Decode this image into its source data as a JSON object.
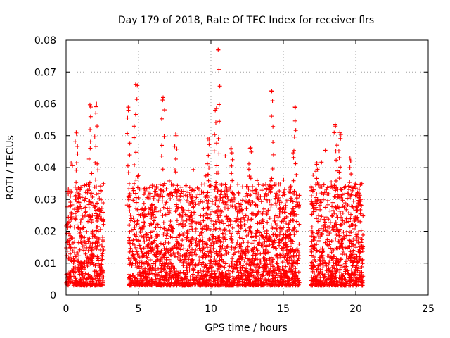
{
  "chart_data": {
    "type": "scatter",
    "title": "Day 179 of 2018, Rate Of TEC Index for receiver flrs",
    "xlabel": "GPS time / hours",
    "ylabel": "ROTI / TECUs",
    "xlim": [
      0,
      25
    ],
    "ylim": [
      0,
      0.08
    ],
    "xticks": [
      0,
      5,
      10,
      15,
      20,
      25
    ],
    "xtick_labels": [
      "0",
      "5",
      "10",
      "15",
      "20",
      "25"
    ],
    "yticks": [
      0,
      0.01,
      0.02,
      0.03,
      0.04,
      0.05,
      0.06,
      0.07,
      0.08
    ],
    "ytick_labels": [
      "0",
      "0.01",
      "0.02",
      "0.03",
      "0.04",
      "0.05",
      "0.06",
      "0.07",
      "0.08"
    ],
    "grid": true,
    "marker": "+",
    "color": "#ff0000",
    "series": [
      {
        "name": "ROTI",
        "coverage_hours": [
          [
            0.0,
            2.6
          ],
          [
            4.3,
            16.1
          ],
          [
            16.9,
            20.5
          ]
        ],
        "typical_range": [
          0.003,
          0.035
        ],
        "peaks": [
          {
            "x": 0.7,
            "y": 0.051
          },
          {
            "x": 1.7,
            "y": 0.059
          },
          {
            "x": 2.1,
            "y": 0.06
          },
          {
            "x": 4.3,
            "y": 0.058
          },
          {
            "x": 4.8,
            "y": 0.066
          },
          {
            "x": 6.7,
            "y": 0.062
          },
          {
            "x": 7.6,
            "y": 0.05
          },
          {
            "x": 9.8,
            "y": 0.049
          },
          {
            "x": 10.3,
            "y": 0.058
          },
          {
            "x": 10.5,
            "y": 0.077
          },
          {
            "x": 11.4,
            "y": 0.046
          },
          {
            "x": 12.7,
            "y": 0.046
          },
          {
            "x": 14.2,
            "y": 0.064
          },
          {
            "x": 15.8,
            "y": 0.059
          },
          {
            "x": 17.3,
            "y": 0.041
          },
          {
            "x": 18.6,
            "y": 0.053
          },
          {
            "x": 18.9,
            "y": 0.051
          },
          {
            "x": 19.6,
            "y": 0.043
          },
          {
            "x": 20.2,
            "y": 0.032
          }
        ]
      }
    ]
  }
}
